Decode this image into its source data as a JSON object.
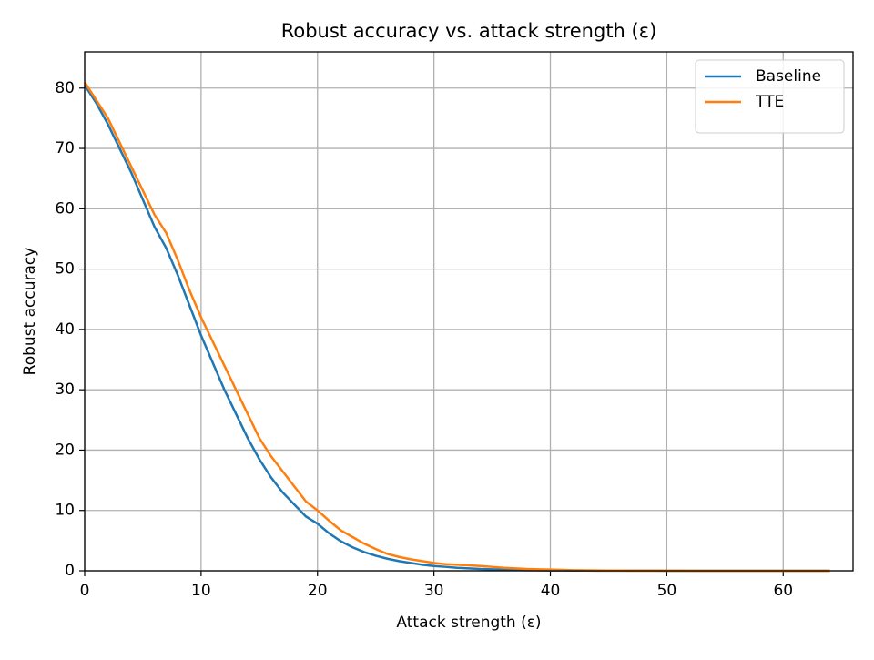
{
  "chart_data": {
    "type": "line",
    "title": "Robust accuracy vs. attack strength (ε)",
    "xlabel": "Attack strength (ε)",
    "ylabel": "Robust accuracy",
    "x": [
      0,
      1,
      2,
      3,
      4,
      5,
      6,
      7,
      8,
      9,
      10,
      11,
      12,
      13,
      14,
      15,
      16,
      17,
      18,
      19,
      20,
      21,
      22,
      23,
      24,
      25,
      26,
      27,
      28,
      29,
      30,
      31,
      32,
      33,
      34,
      35,
      36,
      37,
      38,
      39,
      40,
      41,
      42,
      43,
      44,
      45,
      46,
      47,
      48,
      49,
      50,
      51,
      52,
      53,
      54,
      55,
      56,
      57,
      58,
      59,
      60,
      61,
      62,
      63,
      64
    ],
    "series": [
      {
        "name": "Baseline",
        "color": "#1f77b4",
        "values": [
          80.5,
          77.5,
          74,
          70,
          66,
          61.5,
          57,
          53.5,
          49,
          44,
          39,
          34.5,
          30,
          26,
          22,
          18.5,
          15.5,
          13,
          11,
          9,
          7.8,
          6.2,
          4.9,
          3.9,
          3.1,
          2.5,
          2,
          1.6,
          1.3,
          1,
          0.8,
          0.65,
          0.5,
          0.4,
          0.3,
          0.25,
          0.2,
          0.15,
          0.1,
          0.08,
          0.06,
          0.05,
          0.04,
          0.03,
          0.02,
          0.02,
          0.01,
          0.01,
          0.01,
          0.01,
          0,
          0,
          0,
          0,
          0,
          0,
          0,
          0,
          0,
          0,
          0,
          0,
          0,
          0,
          0
        ]
      },
      {
        "name": "TTE",
        "color": "#ff7f0e",
        "values": [
          81,
          78,
          75,
          71,
          67,
          63,
          59,
          56,
          51.5,
          46.5,
          42,
          38,
          34,
          30,
          26,
          22,
          19,
          16.5,
          14,
          11.5,
          10,
          8.3,
          6.7,
          5.6,
          4.5,
          3.6,
          2.8,
          2.3,
          1.9,
          1.6,
          1.3,
          1.1,
          1,
          0.9,
          0.8,
          0.65,
          0.5,
          0.4,
          0.3,
          0.25,
          0.2,
          0.15,
          0.1,
          0.08,
          0.06,
          0.04,
          0.03,
          0.02,
          0.02,
          0.01,
          0.01,
          0.01,
          0,
          0,
          0,
          0,
          0,
          0,
          0,
          0,
          0,
          0,
          0,
          0,
          0
        ]
      }
    ],
    "xlim": [
      0,
      66
    ],
    "ylim": [
      0,
      86
    ],
    "xticks": [
      0,
      10,
      20,
      30,
      40,
      50,
      60
    ],
    "yticks": [
      0,
      10,
      20,
      30,
      40,
      50,
      60,
      70,
      80
    ],
    "grid": true,
    "legend": "upper right"
  }
}
